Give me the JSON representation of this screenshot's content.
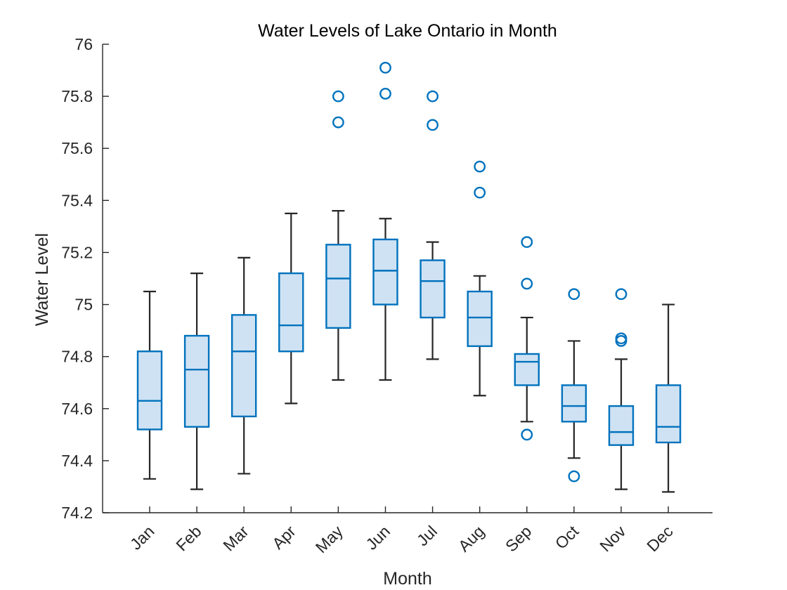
{
  "chart_data": {
    "type": "boxplot",
    "title": "Water Levels of Lake Ontario in Month",
    "xlabel": "Month",
    "ylabel": "Water Level",
    "ylim": [
      74.2,
      76
    ],
    "yticks": [
      74.2,
      74.4,
      74.6,
      74.8,
      75,
      75.2,
      75.4,
      75.6,
      75.8,
      76
    ],
    "ytick_labels": [
      "74.2",
      "74.4",
      "74.6",
      "74.8",
      "75",
      "75.2",
      "75.4",
      "75.6",
      "75.8",
      "76"
    ],
    "categories": [
      "Jan",
      "Feb",
      "Mar",
      "Apr",
      "May",
      "Jun",
      "Jul",
      "Aug",
      "Sep",
      "Oct",
      "Nov",
      "Dec"
    ],
    "boxes": [
      {
        "category": "Jan",
        "whisker_low": 74.33,
        "q1": 74.52,
        "median": 74.63,
        "q3": 74.82,
        "whisker_high": 75.05,
        "outliers": []
      },
      {
        "category": "Feb",
        "whisker_low": 74.29,
        "q1": 74.53,
        "median": 74.75,
        "q3": 74.88,
        "whisker_high": 75.12,
        "outliers": []
      },
      {
        "category": "Mar",
        "whisker_low": 74.35,
        "q1": 74.57,
        "median": 74.82,
        "q3": 74.96,
        "whisker_high": 75.18,
        "outliers": []
      },
      {
        "category": "Apr",
        "whisker_low": 74.62,
        "q1": 74.82,
        "median": 74.92,
        "q3": 75.12,
        "whisker_high": 75.35,
        "outliers": []
      },
      {
        "category": "May",
        "whisker_low": 74.71,
        "q1": 74.91,
        "median": 75.1,
        "q3": 75.23,
        "whisker_high": 75.36,
        "outliers": [
          75.7,
          75.8
        ]
      },
      {
        "category": "Jun",
        "whisker_low": 74.71,
        "q1": 75.0,
        "median": 75.13,
        "q3": 75.25,
        "whisker_high": 75.33,
        "outliers": [
          75.81,
          75.91
        ]
      },
      {
        "category": "Jul",
        "whisker_low": 74.79,
        "q1": 74.95,
        "median": 75.09,
        "q3": 75.17,
        "whisker_high": 75.24,
        "outliers": [
          75.69,
          75.8
        ]
      },
      {
        "category": "Aug",
        "whisker_low": 74.65,
        "q1": 74.84,
        "median": 74.95,
        "q3": 75.05,
        "whisker_high": 75.11,
        "outliers": [
          75.43,
          75.53
        ]
      },
      {
        "category": "Sep",
        "whisker_low": 74.55,
        "q1": 74.69,
        "median": 74.78,
        "q3": 74.81,
        "whisker_high": 74.95,
        "outliers": [
          74.5,
          75.08,
          75.24
        ]
      },
      {
        "category": "Oct",
        "whisker_low": 74.41,
        "q1": 74.55,
        "median": 74.61,
        "q3": 74.69,
        "whisker_high": 74.86,
        "outliers": [
          74.34,
          75.04
        ]
      },
      {
        "category": "Nov",
        "whisker_low": 74.29,
        "q1": 74.46,
        "median": 74.51,
        "q3": 74.61,
        "whisker_high": 74.79,
        "outliers": [
          74.86,
          74.87,
          75.04
        ]
      },
      {
        "category": "Dec",
        "whisker_low": 74.28,
        "q1": 74.47,
        "median": 74.53,
        "q3": 74.69,
        "whisker_high": 75.0,
        "outliers": []
      }
    ],
    "grid": false,
    "legend": "none",
    "colors": {
      "box_fill": "#cfe2f3",
      "box_edge": "#0072bd",
      "median": "#0072bd",
      "whisker": "#262626",
      "outlier": "#0072bd",
      "axis": "#262626"
    }
  }
}
